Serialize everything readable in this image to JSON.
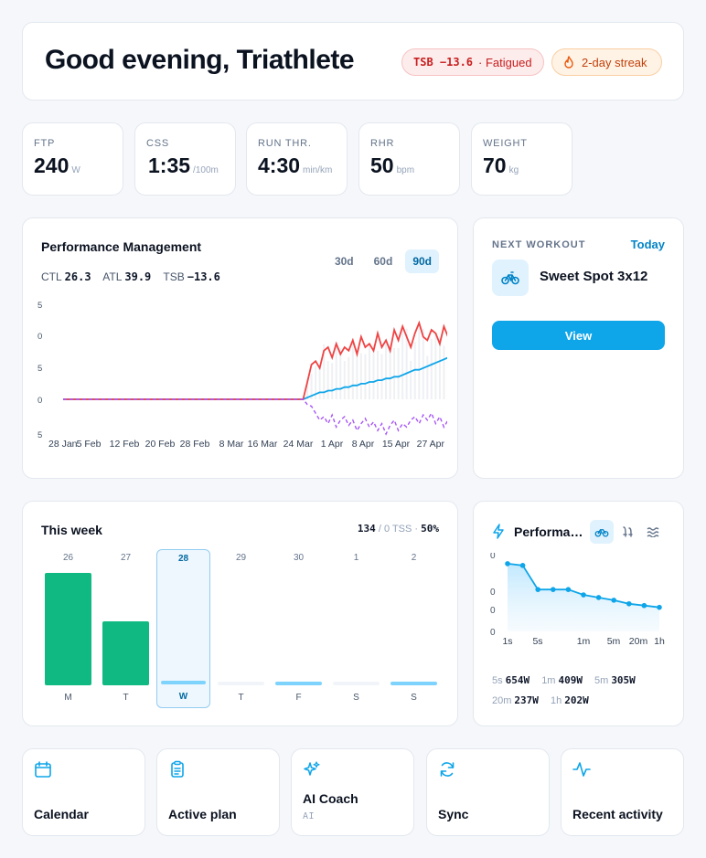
{
  "header": {
    "greeting": "Good evening, Triathlete",
    "tsb_badge": {
      "value": "TSB −13.6",
      "label": "· Fatigued"
    },
    "streak_badge": "2-day streak"
  },
  "metrics": [
    {
      "label": "FTP",
      "value": "240",
      "unit": "W"
    },
    {
      "label": "CSS",
      "value": "1:35",
      "unit": "/100m"
    },
    {
      "label": "RUN THR.",
      "value": "4:30",
      "unit": "min/km"
    },
    {
      "label": "RHR",
      "value": "50",
      "unit": "bpm"
    },
    {
      "label": "WEIGHT",
      "value": "70",
      "unit": "kg"
    }
  ],
  "pmc": {
    "title": "Performance Management",
    "ranges": [
      "30d",
      "60d",
      "90d"
    ],
    "active_range": "90d",
    "stats": {
      "ctl_label": "CTL",
      "ctl": "26.3",
      "atl_label": "ATL",
      "atl": "39.9",
      "tsb_label": "TSB",
      "tsb": "−13.6"
    },
    "colors": {
      "ctl": "#0ea5e9",
      "atl": "#ef4444",
      "tsb": "#a855f7",
      "tss": "#e5e7eb"
    }
  },
  "next_workout": {
    "label": "NEXT WORKOUT",
    "when": "Today",
    "name": "Sweet Spot 3x12",
    "sport_icon": "bike-icon",
    "button": "View"
  },
  "week": {
    "title": "This week",
    "tss_done": "134",
    "tss_planned": "/ 0 TSS",
    "pct": "50%",
    "days": [
      {
        "date": "26",
        "dow": "M",
        "tss_fraction": 1.0,
        "state": "done"
      },
      {
        "date": "27",
        "dow": "T",
        "tss_fraction": 0.57,
        "state": "done"
      },
      {
        "date": "28",
        "dow": "W",
        "tss_fraction": 0.03,
        "state": "planned",
        "today": true
      },
      {
        "date": "29",
        "dow": "T",
        "tss_fraction": 0.03,
        "state": "rest"
      },
      {
        "date": "30",
        "dow": "F",
        "tss_fraction": 0.03,
        "state": "planned"
      },
      {
        "date": "1",
        "dow": "S",
        "tss_fraction": 0.03,
        "state": "rest"
      },
      {
        "date": "2",
        "dow": "S",
        "tss_fraction": 0.03,
        "state": "planned"
      }
    ]
  },
  "power_curve": {
    "title": "Performance",
    "sports": [
      "bike-icon",
      "run-icon",
      "swim-icon"
    ],
    "x_ticks": [
      "1s",
      "5s",
      "1m",
      "5m",
      "20m",
      "1h"
    ],
    "bests": [
      {
        "k": "5s",
        "v": "654W"
      },
      {
        "k": "1m",
        "v": "409W"
      },
      {
        "k": "5m",
        "v": "305W"
      },
      {
        "k": "20m",
        "v": "237W"
      },
      {
        "k": "1h",
        "v": "202W"
      }
    ]
  },
  "quick_links": [
    {
      "label": "Calendar",
      "icon": "calendar-icon"
    },
    {
      "label": "Active plan",
      "icon": "clipboard-icon"
    },
    {
      "label": "AI Coach",
      "icon": "sparkles-icon",
      "sub": "AI"
    },
    {
      "label": "Sync",
      "icon": "refresh-icon"
    },
    {
      "label": "Recent activity",
      "icon": "activity-icon"
    }
  ],
  "chart_data": [
    {
      "type": "line",
      "title": "Performance Management",
      "x_ticks": [
        "28 Jan",
        "5 Feb",
        "12 Feb",
        "20 Feb",
        "28 Feb",
        "8 Mar",
        "16 Mar",
        "24 Mar",
        "1 Apr",
        "8 Apr",
        "15 Apr",
        "27 Apr"
      ],
      "y_ticks": [
        "5",
        "0",
        "5",
        "0",
        "5"
      ],
      "series": [
        {
          "name": "CTL",
          "values": [
            0,
            0,
            0,
            0,
            0,
            0,
            0,
            0,
            0,
            0,
            0,
            0,
            0,
            0,
            0,
            0,
            0,
            0,
            0,
            0,
            0,
            0,
            0,
            0,
            0,
            0,
            0,
            0,
            0,
            0,
            0,
            0,
            0,
            0,
            0,
            0,
            0,
            0,
            0,
            0,
            0,
            0,
            0,
            0,
            0,
            0,
            0,
            0,
            0,
            0,
            0,
            0,
            0,
            0,
            0,
            0,
            0,
            0,
            0,
            1,
            2,
            3,
            4,
            4,
            5,
            5,
            6,
            6,
            7,
            7,
            8,
            8,
            9,
            9,
            10,
            10,
            11,
            11,
            12,
            12,
            13,
            13,
            14,
            15,
            16,
            17,
            17,
            18,
            19,
            20,
            21,
            22,
            23,
            24,
            25,
            26
          ]
        },
        {
          "name": "ATL",
          "values": [
            0,
            0,
            0,
            0,
            0,
            0,
            0,
            0,
            0,
            0,
            0,
            0,
            0,
            0,
            0,
            0,
            0,
            0,
            0,
            0,
            0,
            0,
            0,
            0,
            0,
            0,
            0,
            0,
            0,
            0,
            0,
            0,
            0,
            0,
            0,
            0,
            0,
            0,
            0,
            0,
            0,
            0,
            0,
            0,
            0,
            0,
            0,
            0,
            0,
            0,
            0,
            0,
            0,
            0,
            0,
            0,
            0,
            0,
            0,
            10,
            20,
            22,
            18,
            28,
            30,
            24,
            32,
            26,
            30,
            28,
            34,
            26,
            36,
            30,
            32,
            28,
            38,
            30,
            34,
            28,
            40,
            34,
            42,
            36,
            30,
            38,
            44,
            36,
            34,
            40,
            38,
            32,
            42,
            36,
            44,
            40
          ]
        },
        {
          "name": "TSB",
          "values": [
            0,
            0,
            0,
            0,
            0,
            0,
            0,
            0,
            0,
            0,
            0,
            0,
            0,
            0,
            0,
            0,
            0,
            0,
            0,
            0,
            0,
            0,
            0,
            0,
            0,
            0,
            0,
            0,
            0,
            0,
            0,
            0,
            0,
            0,
            0,
            0,
            0,
            0,
            0,
            0,
            0,
            0,
            0,
            0,
            0,
            0,
            0,
            0,
            0,
            0,
            0,
            0,
            0,
            0,
            0,
            0,
            0,
            0,
            0,
            -3,
            -4,
            -8,
            -12,
            -10,
            -14,
            -9,
            -16,
            -12,
            -10,
            -15,
            -12,
            -18,
            -14,
            -11,
            -16,
            -13,
            -18,
            -14,
            -20,
            -15,
            -12,
            -18,
            -14,
            -16,
            -12,
            -10,
            -14,
            -9,
            -12,
            -8,
            -14,
            -10,
            -16,
            -12,
            -10,
            -14
          ]
        }
      ]
    },
    {
      "type": "area",
      "title": "Performance",
      "x_ticks": [
        "1s",
        "5s",
        "1m",
        "5m",
        "20m",
        "1h"
      ],
      "y_ticks": [
        "0",
        "0",
        "0",
        "0"
      ],
      "series": [
        {
          "name": "Power",
          "values": [
            760,
            740,
            470,
            470,
            470,
            410,
            380,
            350,
            310,
            290,
            270
          ]
        }
      ]
    }
  ]
}
